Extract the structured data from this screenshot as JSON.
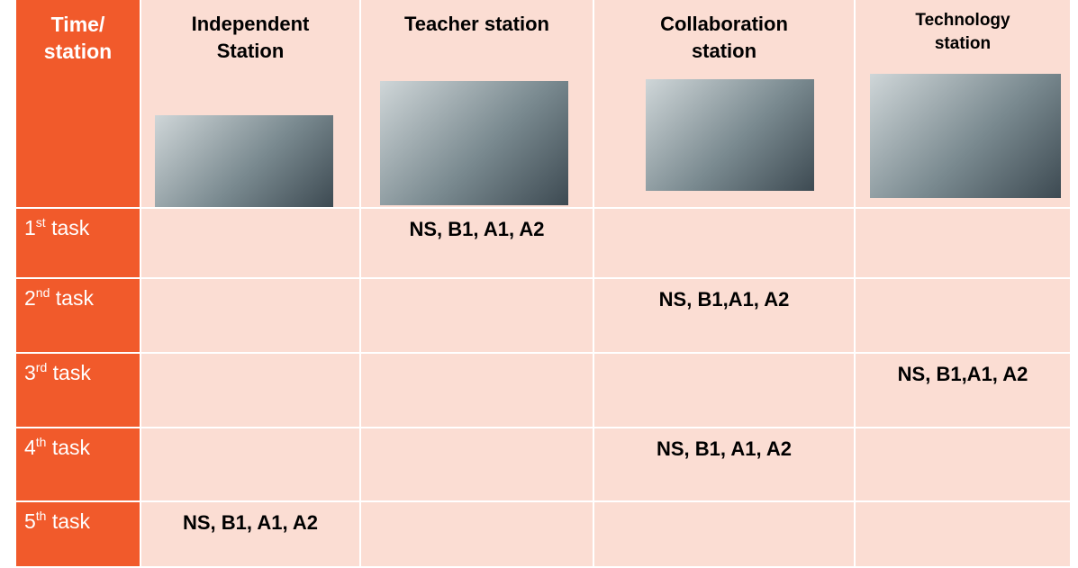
{
  "table": {
    "header": [
      [
        "Time/",
        "station"
      ],
      [
        "Independent",
        "Station"
      ],
      [
        "Teacher station"
      ],
      [
        "Collaboration",
        "station"
      ],
      [
        "Technology",
        "station"
      ]
    ],
    "rows": [
      {
        "label": {
          "number": "1",
          "suffix": "st",
          "word": "task"
        },
        "cells": [
          null,
          "NS, B1, A1, A2",
          null,
          null
        ]
      },
      {
        "label": {
          "number": "2",
          "suffix": "nd",
          "word": "task"
        },
        "cells": [
          null,
          null,
          "NS, B1,A1, A2",
          null
        ]
      },
      {
        "label": {
          "number": "3",
          "suffix": "rd",
          "word": "task"
        },
        "cells": [
          null,
          null,
          null,
          "NS, B1,A1, A2"
        ]
      },
      {
        "label": {
          "number": "4",
          "suffix": "th",
          "word": "task"
        },
        "cells": [
          null,
          null,
          "NS, B1, A1, A2",
          null
        ]
      },
      {
        "label": {
          "number": "5",
          "suffix": "th",
          "word": "task"
        },
        "cells": [
          "NS, B1, A1, A2",
          null,
          null,
          null
        ]
      }
    ]
  }
}
